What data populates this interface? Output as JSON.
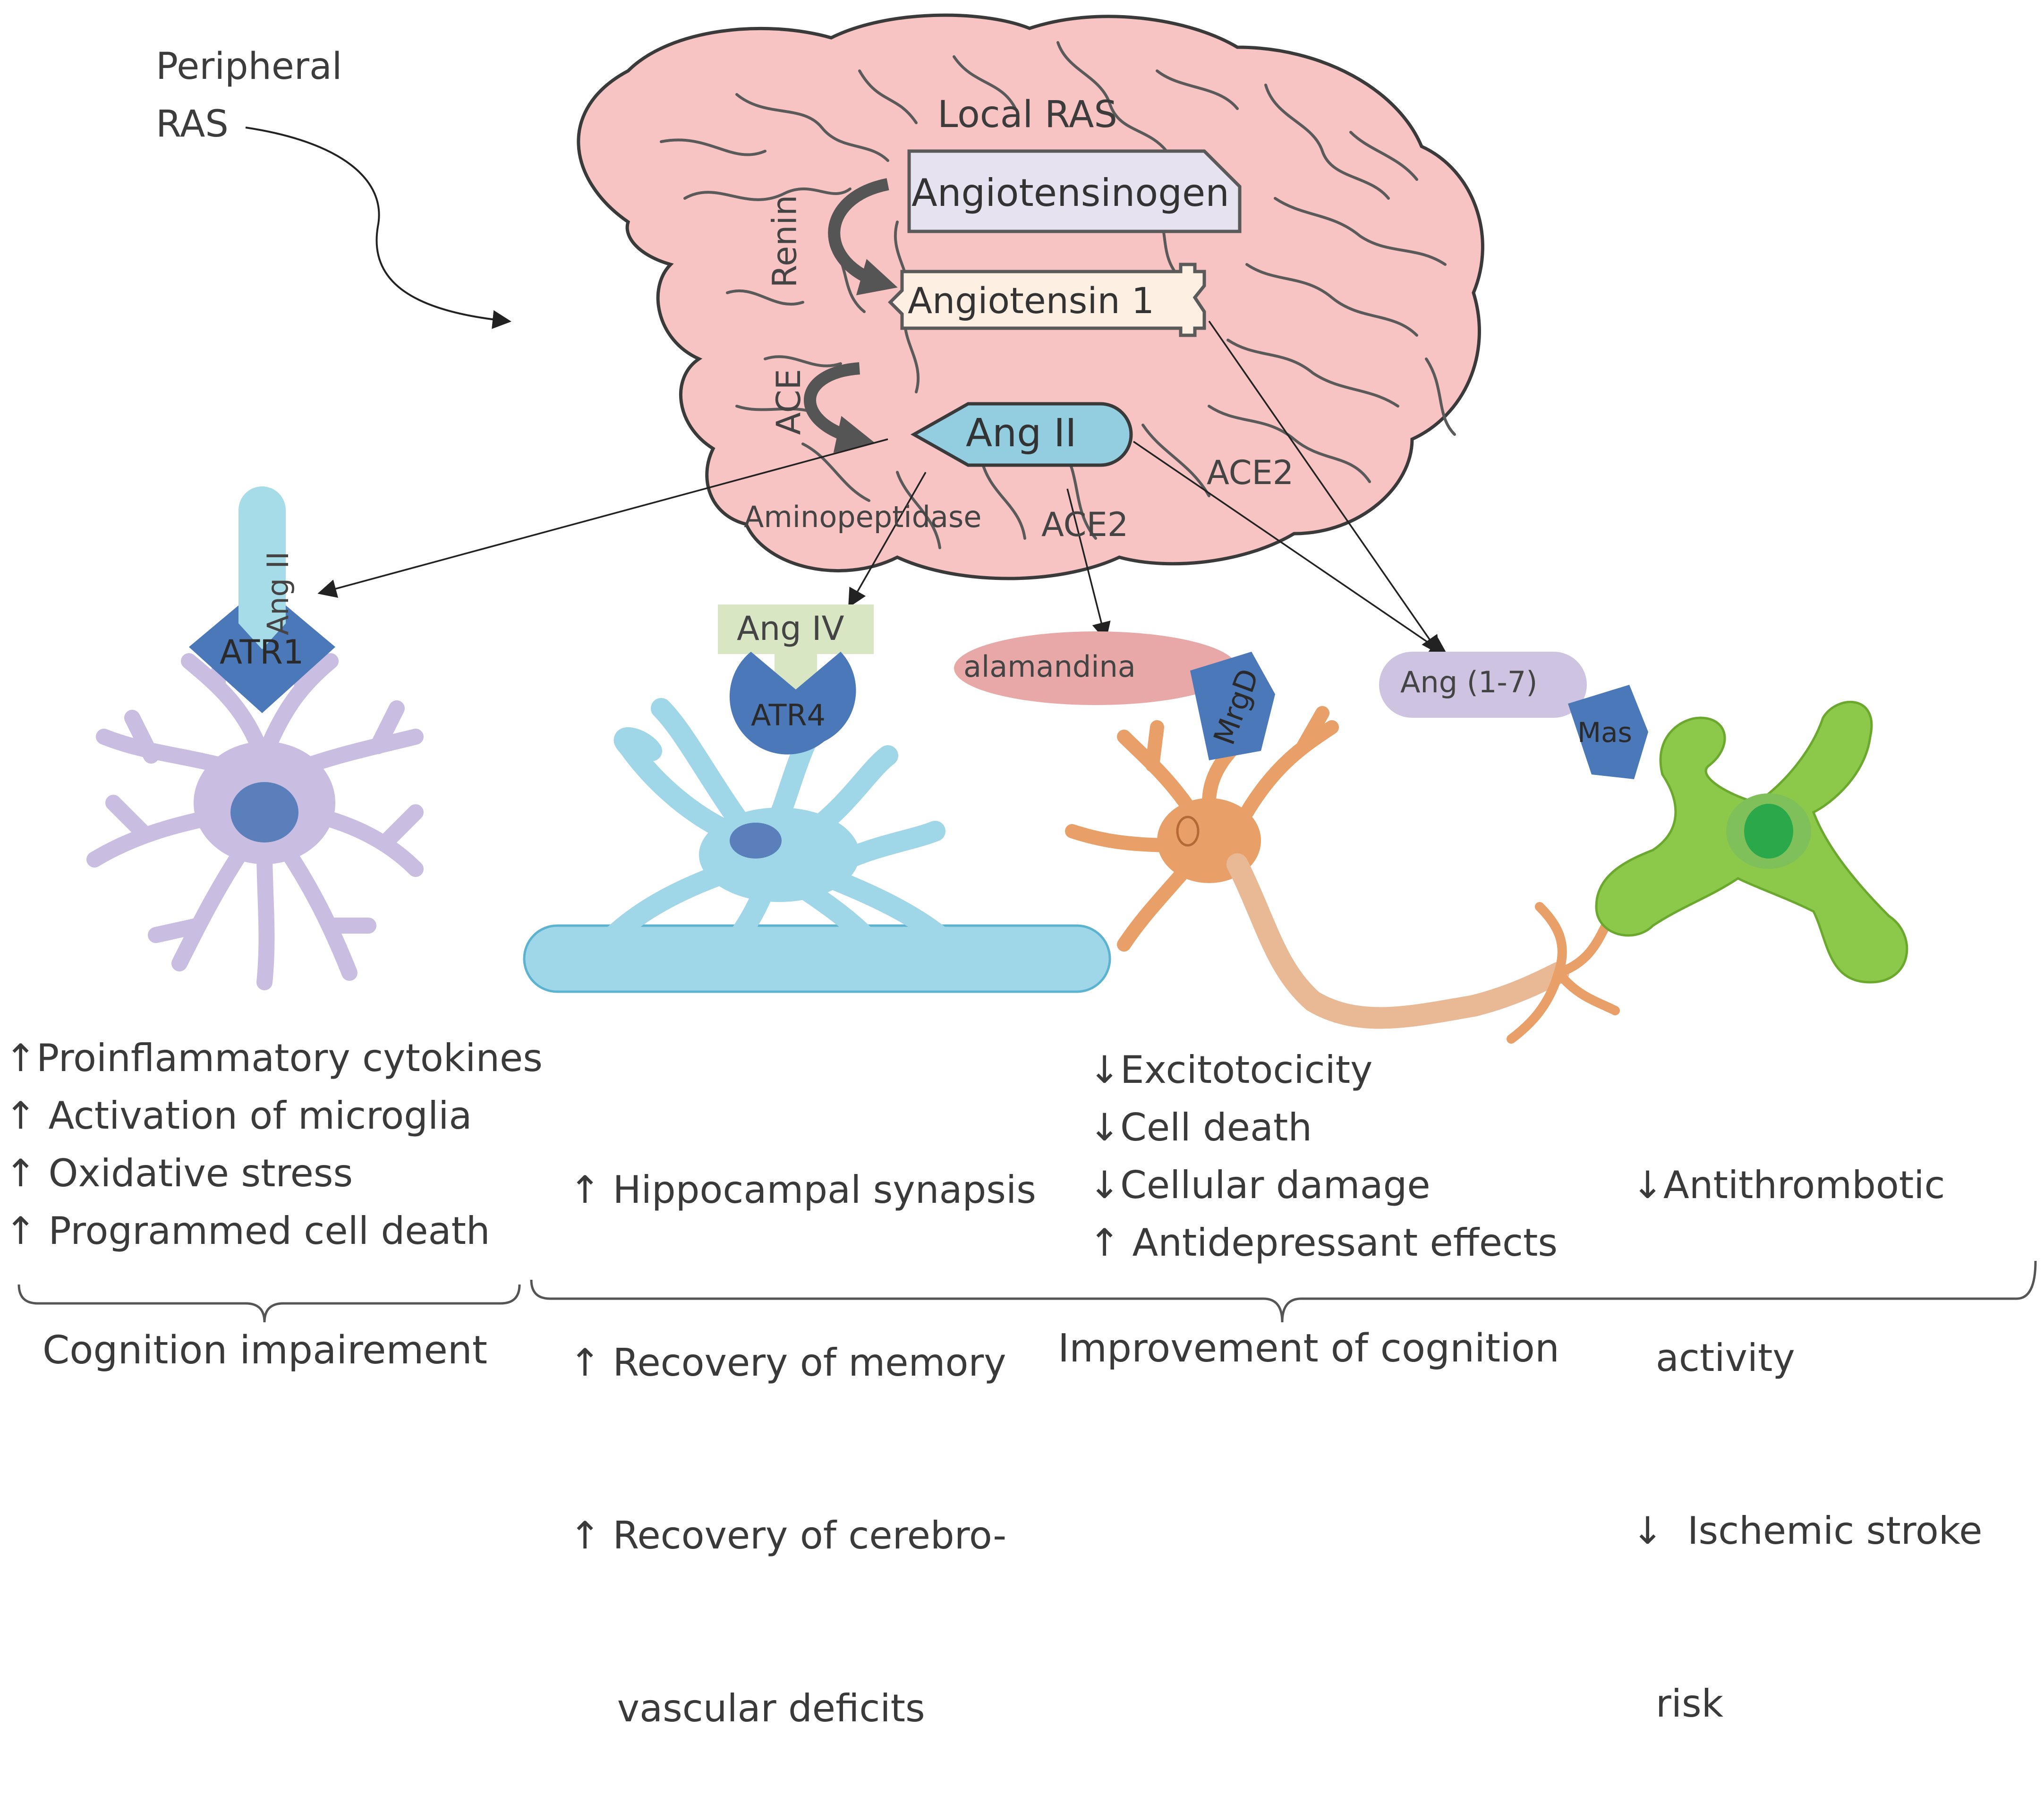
{
  "labels": {
    "peripheral_ras": [
      "Peripheral",
      "RAS"
    ],
    "local_ras": "Local RAS",
    "renin": "Renin",
    "ace": "ACE",
    "ace2_right": "ACE2",
    "ace2_center": "ACE2",
    "aminopeptidase": "Aminopeptidase"
  },
  "molecules": {
    "angiotensinogen": "Angiotensinogen",
    "angiotensin1": "Angiotensin 1",
    "ang2": "Ang II",
    "ang2_ligand": "Ang II",
    "ang4": "Ang IV",
    "alamandina": "alamandina",
    "ang17": "Ang (1-7)"
  },
  "receptors": {
    "atr1": "ATR1",
    "atr4": "ATR4",
    "mrgd": "MrgD",
    "mas": "Mas"
  },
  "effects": {
    "atr1": [
      "↑Proinflammatory cytokines",
      "↑ Activation of microglia",
      "↑ Oxidative stress",
      "↑ Programmed cell death"
    ],
    "atr4": [
      "↑ Hippocampal synapsis",
      "↑ Recovery of memory",
      "↑ Recovery of cerebro-",
      "    vascular deficits"
    ],
    "mrgd": [
      "↓Excitotocicity",
      "↓Cell death",
      "↓Cellular damage",
      "↑ Antidepressant effects"
    ],
    "mas": [
      "↓Antithrombotic",
      "  activity",
      "↓  Ischemic stroke",
      "  risk"
    ]
  },
  "outcomes": {
    "impairment": "Cognition impairement",
    "improvement": "Improvement of cognition"
  },
  "colors": {
    "brain": "#f7c3c3",
    "angiotensinogen": "#e6e2f0",
    "angiotensin1": "#fdf0e2",
    "ang2": "#92cde0",
    "receptor": "#4a78b8",
    "astrocyte": "#c9bde2",
    "pericyte": "#9fd6e8",
    "neuron": "#e8a068",
    "endothelial": "#8cc84a",
    "ang4": "#d8e6c4",
    "alamandina": "#e8a8a8",
    "ang17": "#cec4e2"
  }
}
